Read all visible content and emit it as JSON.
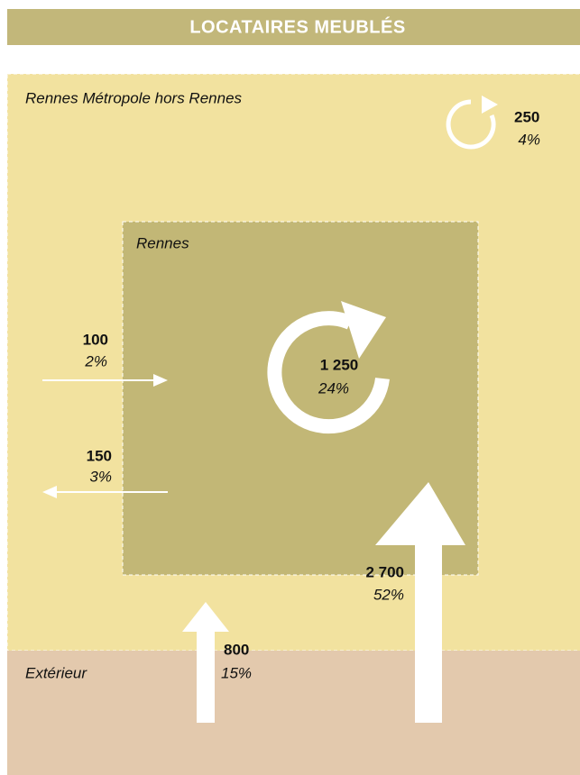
{
  "header": {
    "title": "LOCATAIRES MEUBLÉS"
  },
  "regions": {
    "metropole": "Rennes Métropole hors Rennes",
    "rennes": "Rennes",
    "exterieur": "Extérieur"
  },
  "flows": {
    "within_metropole": {
      "value": "250",
      "share": "4%"
    },
    "within_rennes": {
      "value": "1 250",
      "share": "24%"
    },
    "metropole_to_rennes": {
      "value": "100",
      "share": "2%"
    },
    "rennes_to_metropole": {
      "value": "150",
      "share": "3%"
    },
    "exterieur_to_metropole": {
      "value": "800",
      "share": "15%"
    },
    "exterieur_to_rennes": {
      "value": "2 700",
      "share": "52%"
    }
  }
}
